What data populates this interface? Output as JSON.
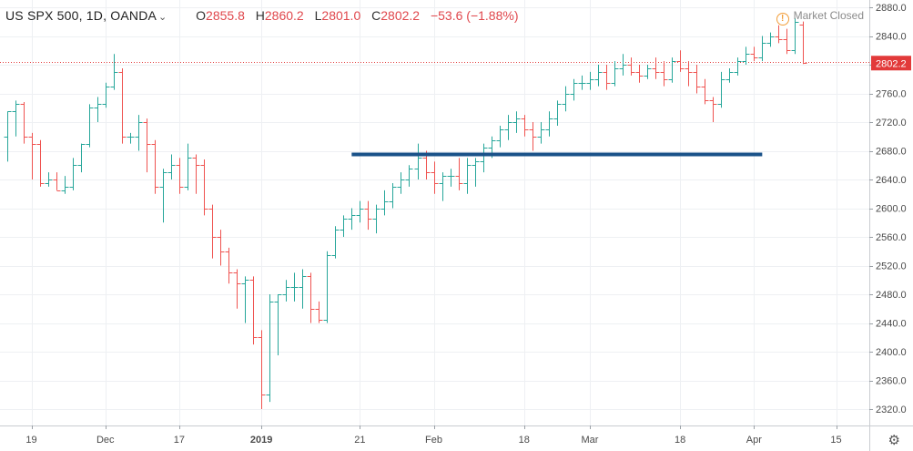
{
  "header": {
    "symbol": "US SPX 500, 1D, OANDA",
    "open_label": "O",
    "open": "2855.8",
    "high_label": "H",
    "high": "2860.2",
    "low_label": "L",
    "low": "2801.0",
    "close_label": "C",
    "close": "2802.2",
    "change": "−53.6 (−1.88%)"
  },
  "status": {
    "icon": "warning-icon",
    "text": "Market Closed"
  },
  "settings_icon": "gear-icon",
  "colors": {
    "up": "#26a69a",
    "down": "#ef5350",
    "hline": "#1a5289",
    "grid": "#eef0f3",
    "pricedot": "#e23a3a"
  },
  "chart_data": {
    "type": "ohlc",
    "symbol": "US SPX 500",
    "interval": "1D",
    "ylim": [
      2300,
      2890
    ],
    "y_ticks": [
      2880,
      2840,
      2800,
      2760,
      2720,
      2680,
      2640,
      2600,
      2560,
      2520,
      2480,
      2440,
      2400,
      2360,
      2320
    ],
    "x_ticks": [
      "19",
      "Dec",
      "17",
      "2019",
      "21",
      "Feb",
      "18",
      "Mar",
      "18",
      "Apr",
      "15"
    ],
    "x_tick_index": [
      3,
      12,
      21,
      31,
      43,
      52,
      63,
      71,
      82,
      91,
      101
    ],
    "last_price": 2802.2,
    "horizontal_line": 2675,
    "horizontal_line_range_index": [
      42,
      92
    ],
    "candles": [
      [
        2700,
        2735,
        2665,
        2735
      ],
      [
        2735,
        2750,
        2700,
        2745
      ],
      [
        2745,
        2748,
        2690,
        2700
      ],
      [
        2700,
        2705,
        2640,
        2690
      ],
      [
        2690,
        2695,
        2630,
        2635
      ],
      [
        2635,
        2650,
        2630,
        2640
      ],
      [
        2640,
        2650,
        2625,
        2625
      ],
      [
        2625,
        2645,
        2620,
        2630
      ],
      [
        2630,
        2670,
        2625,
        2660
      ],
      [
        2660,
        2690,
        2650,
        2690
      ],
      [
        2690,
        2745,
        2685,
        2740
      ],
      [
        2740,
        2755,
        2720,
        2745
      ],
      [
        2745,
        2775,
        2740,
        2770
      ],
      [
        2770,
        2815,
        2765,
        2790
      ],
      [
        2790,
        2795,
        2690,
        2700
      ],
      [
        2700,
        2705,
        2690,
        2700
      ],
      [
        2700,
        2730,
        2680,
        2720
      ],
      [
        2720,
        2725,
        2650,
        2690
      ],
      [
        2690,
        2695,
        2620,
        2630
      ],
      [
        2630,
        2655,
        2580,
        2650
      ],
      [
        2650,
        2675,
        2640,
        2660
      ],
      [
        2660,
        2670,
        2620,
        2630
      ],
      [
        2630,
        2690,
        2625,
        2670
      ],
      [
        2670,
        2675,
        2620,
        2660
      ],
      [
        2660,
        2668,
        2590,
        2600
      ],
      [
        2600,
        2605,
        2530,
        2560
      ],
      [
        2560,
        2570,
        2520,
        2540
      ],
      [
        2540,
        2545,
        2495,
        2510
      ],
      [
        2510,
        2515,
        2460,
        2495
      ],
      [
        2495,
        2505,
        2440,
        2500
      ],
      [
        2500,
        2505,
        2410,
        2420
      ],
      [
        2420,
        2430,
        2320,
        2340
      ],
      [
        2340,
        2480,
        2330,
        2470
      ],
      [
        2470,
        2480,
        2395,
        2480
      ],
      [
        2480,
        2500,
        2470,
        2490
      ],
      [
        2490,
        2510,
        2470,
        2490
      ],
      [
        2490,
        2515,
        2460,
        2505
      ],
      [
        2505,
        2510,
        2440,
        2460
      ],
      [
        2460,
        2470,
        2440,
        2445
      ],
      [
        2445,
        2540,
        2440,
        2535
      ],
      [
        2535,
        2575,
        2530,
        2570
      ],
      [
        2570,
        2590,
        2560,
        2585
      ],
      [
        2585,
        2600,
        2570,
        2590
      ],
      [
        2590,
        2610,
        2580,
        2600
      ],
      [
        2600,
        2610,
        2570,
        2585
      ],
      [
        2585,
        2605,
        2565,
        2600
      ],
      [
        2600,
        2625,
        2590,
        2610
      ],
      [
        2610,
        2635,
        2600,
        2630
      ],
      [
        2630,
        2650,
        2620,
        2640
      ],
      [
        2640,
        2660,
        2630,
        2655
      ],
      [
        2655,
        2690,
        2640,
        2670
      ],
      [
        2670,
        2680,
        2640,
        2650
      ],
      [
        2650,
        2665,
        2620,
        2635
      ],
      [
        2635,
        2650,
        2610,
        2645
      ],
      [
        2645,
        2655,
        2630,
        2645
      ],
      [
        2645,
        2670,
        2625,
        2635
      ],
      [
        2635,
        2670,
        2620,
        2660
      ],
      [
        2660,
        2670,
        2630,
        2665
      ],
      [
        2665,
        2690,
        2650,
        2685
      ],
      [
        2685,
        2700,
        2670,
        2695
      ],
      [
        2695,
        2715,
        2685,
        2710
      ],
      [
        2710,
        2730,
        2695,
        2720
      ],
      [
        2720,
        2735,
        2705,
        2725
      ],
      [
        2725,
        2730,
        2700,
        2710
      ],
      [
        2710,
        2720,
        2680,
        2700
      ],
      [
        2700,
        2720,
        2690,
        2710
      ],
      [
        2710,
        2735,
        2700,
        2725
      ],
      [
        2725,
        2750,
        2715,
        2745
      ],
      [
        2745,
        2770,
        2735,
        2760
      ],
      [
        2760,
        2780,
        2750,
        2775
      ],
      [
        2775,
        2785,
        2765,
        2775
      ],
      [
        2775,
        2790,
        2765,
        2780
      ],
      [
        2780,
        2800,
        2770,
        2790
      ],
      [
        2790,
        2800,
        2765,
        2775
      ],
      [
        2775,
        2805,
        2770,
        2795
      ],
      [
        2795,
        2815,
        2785,
        2800
      ],
      [
        2800,
        2810,
        2785,
        2790
      ],
      [
        2790,
        2800,
        2775,
        2785
      ],
      [
        2785,
        2800,
        2780,
        2795
      ],
      [
        2795,
        2810,
        2780,
        2790
      ],
      [
        2790,
        2805,
        2770,
        2780
      ],
      [
        2780,
        2810,
        2775,
        2805
      ],
      [
        2805,
        2820,
        2790,
        2795
      ],
      [
        2795,
        2805,
        2770,
        2790
      ],
      [
        2790,
        2800,
        2760,
        2770
      ],
      [
        2770,
        2780,
        2745,
        2750
      ],
      [
        2750,
        2755,
        2720,
        2745
      ],
      [
        2745,
        2790,
        2740,
        2780
      ],
      [
        2780,
        2795,
        2775,
        2790
      ],
      [
        2790,
        2810,
        2785,
        2805
      ],
      [
        2805,
        2825,
        2800,
        2815
      ],
      [
        2815,
        2825,
        2805,
        2810
      ],
      [
        2810,
        2840,
        2805,
        2830
      ],
      [
        2830,
        2845,
        2825,
        2840
      ],
      [
        2840,
        2855,
        2830,
        2835
      ],
      [
        2835,
        2850,
        2815,
        2820
      ],
      [
        2820,
        2865,
        2815,
        2860
      ],
      [
        2855.8,
        2860.2,
        2801.0,
        2802.2
      ]
    ]
  }
}
